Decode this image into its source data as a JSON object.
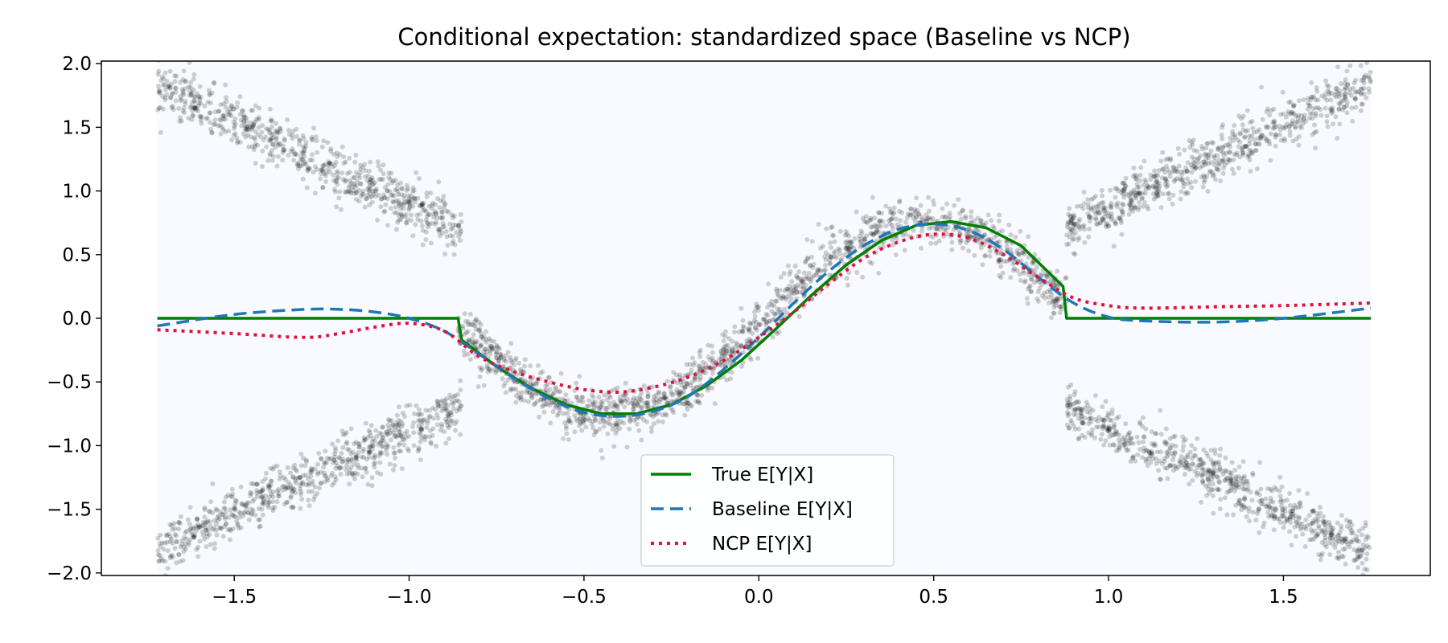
{
  "chart_data": {
    "type": "scatter",
    "title": "Conditional expectation: standardized space (Baseline vs NCP)",
    "xlabel": "",
    "ylabel": "",
    "xlim": [
      -1.88,
      1.92
    ],
    "ylim": [
      -2.02,
      2.02
    ],
    "xticks": [
      -1.5,
      -1.0,
      -0.5,
      0.0,
      0.5,
      1.0,
      1.5
    ],
    "yticks": [
      -2.0,
      -1.5,
      -1.0,
      -0.5,
      0.0,
      0.5,
      1.0,
      1.5,
      2.0
    ],
    "xtick_labels": [
      "−1.5",
      "−1.0",
      "−0.5",
      "0.0",
      "0.5",
      "1.0",
      "1.5"
    ],
    "ytick_labels": [
      "−2.0",
      "−1.5",
      "−1.0",
      "−0.5",
      "0.0",
      "0.5",
      "1.0",
      "1.5",
      "2.0"
    ],
    "grid": false,
    "legend_position": "bottom-center",
    "plot_background": "#f8faff",
    "scatter": {
      "color": "#000000",
      "opacity": 0.18,
      "x_range": [
        -1.72,
        1.75
      ],
      "clusters": [
        {
          "segment": "upper-left",
          "x": [
            -1.72,
            -0.85
          ],
          "y": [
            1.82,
            0.7
          ],
          "spread": 0.1
        },
        {
          "segment": "lower-left",
          "x": [
            -1.72,
            -0.85
          ],
          "y": [
            -1.82,
            -0.7
          ],
          "spread": 0.1
        },
        {
          "segment": "middle",
          "x": [
            -0.86,
            0.88
          ],
          "curve": "0.76*sin(pi*(x-0.02)/0.9)",
          "spread": 0.1
        },
        {
          "segment": "upper-right",
          "x": [
            0.88,
            1.75
          ],
          "y": [
            0.7,
            1.85
          ],
          "spread": 0.1
        },
        {
          "segment": "lower-right",
          "x": [
            0.88,
            1.75
          ],
          "y": [
            -0.7,
            -1.85
          ],
          "spread": 0.1
        }
      ]
    },
    "series": [
      {
        "name": "True E[Y|X]",
        "color": "#008000",
        "style": "solid",
        "x": [
          -1.72,
          -0.86,
          -0.85,
          -0.75,
          -0.65,
          -0.55,
          -0.45,
          -0.35,
          -0.25,
          -0.15,
          -0.05,
          0.05,
          0.15,
          0.25,
          0.35,
          0.45,
          0.55,
          0.65,
          0.75,
          0.87,
          0.88,
          1.75
        ],
        "y": [
          0.0,
          0.0,
          -0.17,
          -0.38,
          -0.55,
          -0.68,
          -0.75,
          -0.75,
          -0.68,
          -0.53,
          -0.33,
          -0.08,
          0.18,
          0.42,
          0.61,
          0.73,
          0.76,
          0.71,
          0.57,
          0.25,
          0.0,
          0.0
        ]
      },
      {
        "name": "Baseline E[Y|X]",
        "color": "#1f77b4",
        "style": "dashed",
        "x": [
          -1.72,
          -1.5,
          -1.3,
          -1.2,
          -1.1,
          -1.0,
          -0.9,
          -0.8,
          -0.7,
          -0.6,
          -0.5,
          -0.4,
          -0.3,
          -0.2,
          -0.1,
          0.0,
          0.1,
          0.2,
          0.3,
          0.4,
          0.5,
          0.6,
          0.7,
          0.8,
          0.9,
          1.0,
          1.1,
          1.3,
          1.5,
          1.75
        ],
        "y": [
          -0.06,
          0.03,
          0.07,
          0.07,
          0.05,
          0.0,
          -0.1,
          -0.28,
          -0.47,
          -0.63,
          -0.74,
          -0.77,
          -0.73,
          -0.61,
          -0.4,
          -0.15,
          0.12,
          0.37,
          0.57,
          0.7,
          0.74,
          0.69,
          0.54,
          0.32,
          0.12,
          0.01,
          -0.02,
          -0.03,
          0.0,
          0.08
        ]
      },
      {
        "name": "NCP E[Y|X]",
        "color": "#dc143c",
        "style": "dotted",
        "x": [
          -1.72,
          -1.5,
          -1.3,
          -1.2,
          -1.1,
          -1.0,
          -0.9,
          -0.8,
          -0.7,
          -0.6,
          -0.5,
          -0.4,
          -0.3,
          -0.2,
          -0.1,
          0.0,
          0.1,
          0.2,
          0.3,
          0.4,
          0.5,
          0.6,
          0.7,
          0.8,
          0.9,
          1.0,
          1.1,
          1.3,
          1.5,
          1.75
        ],
        "y": [
          -0.09,
          -0.12,
          -0.15,
          -0.12,
          -0.07,
          -0.04,
          -0.1,
          -0.3,
          -0.42,
          -0.5,
          -0.56,
          -0.58,
          -0.54,
          -0.46,
          -0.33,
          -0.15,
          0.05,
          0.27,
          0.47,
          0.6,
          0.66,
          0.63,
          0.5,
          0.32,
          0.16,
          0.1,
          0.08,
          0.09,
          0.1,
          0.12
        ]
      }
    ]
  }
}
